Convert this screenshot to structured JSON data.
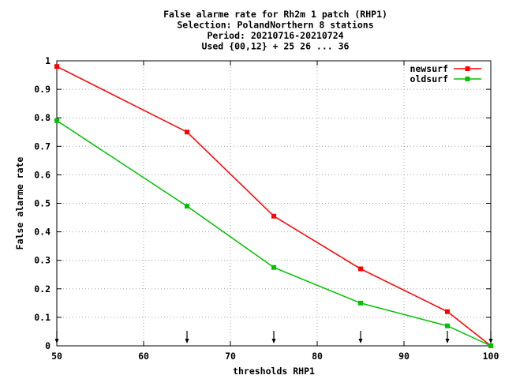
{
  "chart_data": {
    "type": "line",
    "title_lines": [
      "False alarme rate  for Rh2m 1 patch (RHP1)",
      "Selection: PolandNorthern      8 stations",
      "Period: 20210716-20210724",
      "Used {00,12} + 25 26 ... 36"
    ],
    "xlabel": "thresholds RHP1",
    "ylabel": "False alarme rate",
    "xlim": [
      50,
      100
    ],
    "ylim": [
      0,
      1
    ],
    "xticks": [
      50,
      60,
      70,
      80,
      90,
      100
    ],
    "yticks": [
      0,
      0.1,
      0.2,
      0.3,
      0.4,
      0.5,
      0.6,
      0.7,
      0.8,
      0.9,
      1
    ],
    "grid": true,
    "legend_position": "top-right",
    "threshold_markers": [
      50,
      65,
      75,
      85,
      95,
      100
    ],
    "x": [
      50,
      65,
      75,
      85,
      95,
      100
    ],
    "series": [
      {
        "name": "newsurf",
        "color": "#ff0000",
        "values": [
          0.98,
          0.75,
          0.455,
          0.27,
          0.12,
          0.0
        ]
      },
      {
        "name": "oldsurf",
        "color": "#00c000",
        "values": [
          0.79,
          0.49,
          0.275,
          0.15,
          0.07,
          0.0
        ]
      }
    ]
  }
}
